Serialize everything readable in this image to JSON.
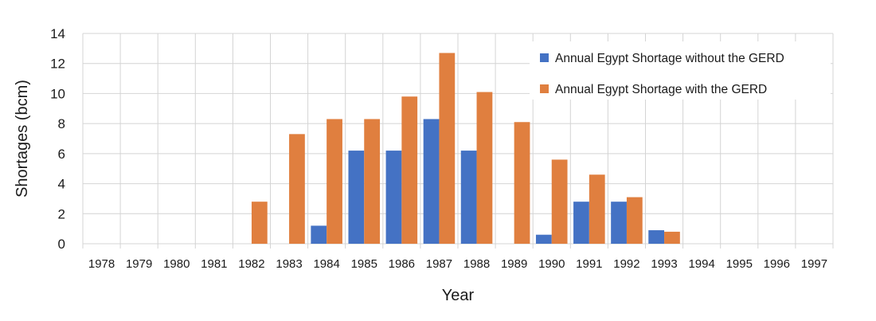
{
  "chart_data": {
    "type": "bar",
    "title": "",
    "xlabel": "Year",
    "ylabel": "Shortages (bcm)",
    "ylim": [
      0,
      14
    ],
    "yticks": [
      0,
      2,
      4,
      6,
      8,
      10,
      12,
      14
    ],
    "grid": true,
    "legend_position": "top-right",
    "categories": [
      "1978",
      "1979",
      "1980",
      "1981",
      "1982",
      "1983",
      "1984",
      "1985",
      "1986",
      "1987",
      "1988",
      "1989",
      "1990",
      "1991",
      "1992",
      "1993",
      "1994",
      "1995",
      "1996",
      "1997"
    ],
    "series": [
      {
        "name": "Annual Egypt Shortage without the GERD",
        "color": "#4472c4",
        "values": [
          0,
          0,
          0,
          0,
          0,
          0,
          1.2,
          6.2,
          6.2,
          8.3,
          6.2,
          0,
          0.6,
          2.8,
          2.8,
          0.9,
          0,
          0,
          0,
          0
        ]
      },
      {
        "name": "Annual Egypt Shortage with the GERD",
        "color": "#e07f3f",
        "values": [
          0,
          0,
          0,
          0,
          2.8,
          7.3,
          8.3,
          8.3,
          9.8,
          12.7,
          10.1,
          8.1,
          5.6,
          4.6,
          3.1,
          0.8,
          0,
          0,
          0,
          0
        ]
      }
    ]
  }
}
